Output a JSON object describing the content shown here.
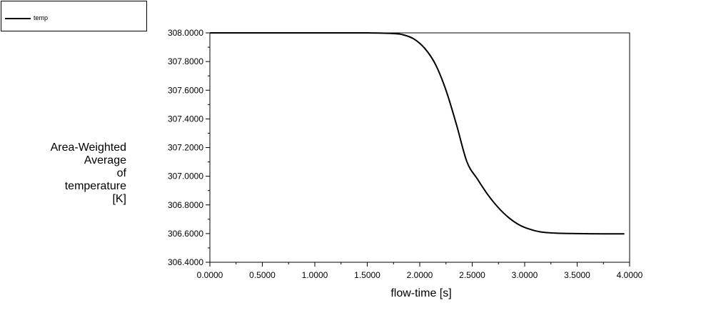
{
  "legend": {
    "label": "temp"
  },
  "chart_data": {
    "type": "line",
    "title": "",
    "xlabel": "flow-time [s]",
    "ylabel": "Area-Weighted\nAverage\nof\ntemperature\n[K]",
    "xlim": [
      0,
      4
    ],
    "ylim": [
      306.4,
      308.0
    ],
    "x_ticks": [
      "0.0000",
      "0.5000",
      "1.0000",
      "1.5000",
      "2.0000",
      "2.5000",
      "3.0000",
      "3.5000",
      "4.0000"
    ],
    "y_ticks": [
      "306.4000",
      "306.6000",
      "306.8000",
      "307.0000",
      "307.2000",
      "307.4000",
      "307.6000",
      "307.8000",
      "308.0000"
    ],
    "grid": false,
    "legend_position": "top-left",
    "series": [
      {
        "name": "temp",
        "color": "#000000",
        "x": [
          0.0,
          0.5,
          1.0,
          1.5,
          1.75,
          1.85,
          1.95,
          2.05,
          2.15,
          2.25,
          2.35,
          2.45,
          2.55,
          2.65,
          2.75,
          2.85,
          2.95,
          3.05,
          3.15,
          3.3,
          3.5,
          3.75,
          3.95
        ],
        "y": [
          308.0,
          308.0,
          308.0,
          308.0,
          307.995,
          307.985,
          307.955,
          307.89,
          307.78,
          307.6,
          307.36,
          307.1,
          306.98,
          306.87,
          306.78,
          306.71,
          306.66,
          306.63,
          306.612,
          306.603,
          306.6,
          306.598,
          306.598
        ]
      }
    ]
  }
}
